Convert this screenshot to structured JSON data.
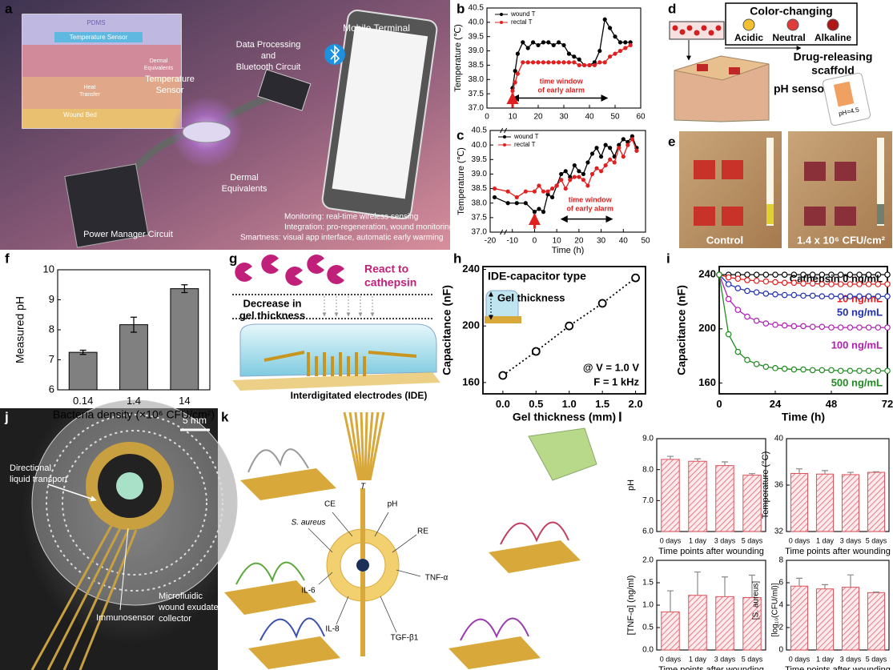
{
  "panel_letters": [
    "a",
    "b",
    "c",
    "d",
    "e",
    "f",
    "g",
    "h",
    "i",
    "j",
    "k",
    "l"
  ],
  "panels": {
    "a": {
      "inset": {
        "pdms": "PDMS",
        "sensor": "Temperature Sensor",
        "dermal": [
          "Dermal",
          "Equivalents"
        ],
        "heat": [
          "Heat",
          "Transfer"
        ],
        "bed": "Wound Bed"
      },
      "mobile": "Mobile Terminal",
      "circuit": [
        "Data Processing",
        "and",
        "Bluetooth Circuit"
      ],
      "sensor": [
        "Temperature",
        "Sensor"
      ],
      "dermal": [
        "Dermal",
        "Equivalents"
      ],
      "power": "Power Manager Circuit",
      "features": [
        "Monitoring: real-time wireless sensing",
        "Integration: pro-regeneration, wound monitoring",
        "Smartness: visual app interface, automatic early warming"
      ]
    },
    "d": {
      "color_title": "Color-changing",
      "colors": [
        "Acidic",
        "Neutral",
        "Alkaline"
      ],
      "scaffold": [
        "Drug-releasing",
        "scaffold"
      ],
      "ph_sensor": "pH sensor",
      "phone": "pH=4.5"
    },
    "e": {
      "control": "Control",
      "infected": "1.4 x 10⁶ CFU/cm²"
    },
    "g": {
      "react": [
        "React to",
        "cathepsin"
      ],
      "decrease": [
        "Decrease in",
        "gel thickness"
      ],
      "ide": "Interdigitated electrodes (IDE)"
    },
    "j": {
      "scale": "5 mm",
      "transport": [
        "Directional",
        "liquid transport"
      ],
      "immuno": "Immunosensor",
      "collector": [
        "Microfluidic",
        "wound exudate",
        "collector"
      ]
    },
    "k": {
      "t": "T",
      "ce": "CE",
      "ph": "pH",
      "re": "RE",
      "saureus": "S. aureus",
      "tnf": "TNF-α",
      "il6": "IL-6",
      "il8": "IL-8",
      "tgf": "TGF-β1"
    }
  },
  "chart_data": [
    {
      "type": "line",
      "ylabel": "Temperature (℃)",
      "x": [
        10,
        11,
        12,
        14,
        16,
        18,
        20,
        22,
        24,
        26,
        28,
        30,
        32,
        34,
        36,
        38,
        40,
        42,
        44,
        46,
        48,
        50,
        52,
        54,
        56
      ],
      "series": [
        {
          "name": "wound T",
          "color": "#000000",
          "values": [
            37.7,
            38.3,
            38.9,
            39.3,
            39.1,
            39.3,
            39.2,
            39.3,
            39.3,
            39.2,
            39.3,
            39.2,
            38.9,
            38.8,
            38.7,
            38.5,
            38.5,
            38.6,
            39.0,
            40.1,
            39.8,
            39.5,
            39.3,
            39.3,
            39.3
          ]
        },
        {
          "name": "rectal T",
          "color": "#e02020",
          "values": [
            37.6,
            37.9,
            38.2,
            38.6,
            38.6,
            38.6,
            38.6,
            38.6,
            38.6,
            38.6,
            38.6,
            38.6,
            38.6,
            38.6,
            38.5,
            38.5,
            38.5,
            38.5,
            38.6,
            38.6,
            38.8,
            38.9,
            39.0,
            39.1,
            39.2
          ]
        }
      ],
      "xlim": [
        0,
        60
      ],
      "xticks": [
        0,
        10,
        20,
        30,
        40,
        50,
        60
      ],
      "ylim": [
        37,
        40.5
      ],
      "yticks": [
        {
          "value": 37,
          "label": "37.0"
        },
        37.5,
        {
          "value": 38,
          "label": "38.0"
        },
        38.5,
        {
          "value": 39,
          "label": "39.0"
        },
        39.5,
        {
          "value": 40,
          "label": "40.0"
        },
        40.5
      ],
      "annotation": [
        "time window",
        "of early alarm"
      ]
    },
    {
      "type": "line",
      "ylabel": "Temperature (℃)",
      "xlabel": "Time (h)",
      "x": [
        -18,
        -12,
        -8,
        -4,
        0,
        2,
        4,
        6,
        8,
        10,
        12,
        14,
        16,
        18,
        20,
        22,
        24,
        26,
        28,
        30,
        32,
        34,
        36,
        38,
        40,
        42,
        44,
        46
      ],
      "series": [
        {
          "name": "wound T",
          "color": "#000000",
          "values": [
            38.2,
            38.0,
            38.0,
            38.0,
            37.7,
            37.8,
            37.7,
            38.3,
            38.2,
            38.6,
            39.0,
            39.1,
            38.9,
            39.3,
            39.1,
            39.0,
            39.4,
            39.7,
            39.9,
            39.6,
            40.0,
            39.9,
            39.6,
            40.0,
            40.2,
            40.1,
            40.3,
            39.9
          ]
        },
        {
          "name": "rectal T",
          "color": "#e02020",
          "values": [
            38.5,
            38.4,
            38.2,
            38.4,
            38.4,
            38.6,
            38.4,
            38.4,
            38.5,
            38.6,
            38.8,
            38.5,
            38.8,
            38.9,
            38.9,
            38.8,
            38.6,
            39.0,
            39.2,
            39.1,
            39.3,
            39.5,
            39.4,
            39.9,
            39.6,
            40.0,
            40.2,
            39.8
          ]
        }
      ],
      "xlim": [
        -20,
        50
      ],
      "xticks": [
        -20,
        -10,
        0,
        10,
        20,
        30,
        40,
        50
      ],
      "ylim": [
        37,
        40.5
      ],
      "yticks": [
        {
          "value": 37,
          "label": "37.0"
        },
        37.5,
        {
          "value": 38,
          "label": "38.0"
        },
        38.5,
        {
          "value": 39,
          "label": "39.0"
        },
        39.5,
        {
          "value": 40,
          "label": "40.0"
        },
        40.5
      ],
      "annotation": [
        "time window",
        "of early alarm"
      ]
    },
    {
      "type": "bar",
      "categories": [
        "0.14",
        "1.4",
        "14"
      ],
      "values": [
        7.25,
        8.17,
        9.37
      ],
      "errors": [
        0.07,
        0.25,
        0.13
      ],
      "color": "#808080",
      "xlabel": "Bacteria density (×10⁶ CFU/cm²)",
      "ylabel": "Measured pH",
      "ylim": [
        6,
        10
      ],
      "yticks": [
        6,
        7,
        8,
        9,
        10
      ]
    },
    {
      "type": "scatter",
      "title": "IDE-capacitor type",
      "x": [
        0,
        0.5,
        1,
        1.5,
        2
      ],
      "values": [
        165,
        182,
        200,
        216,
        234
      ],
      "xlim": [
        -0.3,
        2.15
      ],
      "xticks": [
        {
          "value": 0,
          "label": "0.0"
        },
        0.5,
        {
          "value": 1,
          "label": "1.0"
        },
        1.5,
        {
          "value": 2,
          "label": "2.0"
        }
      ],
      "ylim": [
        152,
        242
      ],
      "yticks": [
        160,
        200,
        240
      ],
      "xlabel": "Gel thickness (mm)",
      "ylabel": "Capacitance (nF)",
      "annotations": [
        "Gel thickness",
        "@ V = 1.0 V",
        "F = 1 kHz"
      ]
    },
    {
      "type": "line",
      "xlabel": "Time (h)",
      "ylabel": "Capacitance (nF)",
      "x": [
        0,
        4,
        8,
        12,
        16,
        20,
        24,
        28,
        32,
        36,
        40,
        44,
        48,
        52,
        56,
        60,
        64,
        68,
        72
      ],
      "series": [
        {
          "name": "Cathepsin 0 ng/mL",
          "color": "#000000",
          "values": [
            240,
            240,
            240,
            240,
            240,
            240,
            240,
            240,
            240,
            240,
            240,
            240,
            240,
            240,
            240,
            240,
            240,
            240,
            240
          ]
        },
        {
          "name": "10 ng/mL",
          "color": "#e0201f",
          "values": [
            240,
            238,
            237,
            236,
            235.5,
            235,
            234.5,
            234,
            234,
            233.5,
            233.5,
            233,
            233,
            233,
            233,
            233,
            233,
            233,
            233
          ]
        },
        {
          "name": "50 ng/mL",
          "color": "#1f2fb0",
          "values": [
            240,
            233,
            230,
            228,
            227,
            226,
            225.5,
            225,
            225,
            224.5,
            224.5,
            224,
            224,
            224,
            224,
            224,
            224,
            224,
            224
          ]
        },
        {
          "name": "100 ng/mL",
          "color": "#b01fb0",
          "values": [
            240,
            222,
            214,
            209,
            206,
            204,
            203,
            202.5,
            202,
            202,
            201.5,
            201.5,
            201,
            201,
            201,
            201,
            201,
            201,
            201
          ]
        },
        {
          "name": "500 ng/mL",
          "color": "#1f8a1f",
          "values": [
            240,
            196,
            183,
            177,
            174,
            172,
            171,
            170.5,
            170,
            170,
            169.5,
            169.5,
            169.5,
            169,
            169,
            169,
            169,
            169,
            169
          ]
        }
      ],
      "xlim": [
        0,
        72
      ],
      "xticks": [
        0,
        24,
        48,
        72
      ],
      "ylim": [
        152,
        246
      ],
      "yticks": [
        160,
        200,
        240
      ]
    },
    {
      "type": "bar",
      "hatch": true,
      "color": "#e0505a",
      "categories": [
        "0 days",
        "1 day",
        "3 days",
        "5 days"
      ],
      "values": [
        8.33,
        8.27,
        8.13,
        7.82
      ],
      "errors": [
        0.1,
        0.08,
        0.12,
        0.05
      ],
      "ylabel": "pH",
      "xlabel": "Time points after wounding",
      "ylim": [
        6,
        9
      ],
      "yticks": [
        {
          "value": 6,
          "label": "6.0"
        },
        {
          "value": 7,
          "label": "7.0"
        },
        {
          "value": 8,
          "label": "8.0"
        },
        {
          "value": 9,
          "label": "9.0"
        }
      ]
    },
    {
      "type": "bar",
      "hatch": true,
      "color": "#e0505a",
      "categories": [
        "0 days",
        "1 day",
        "3 days",
        "5 days"
      ],
      "values": [
        37.0,
        36.95,
        36.9,
        37.1
      ],
      "errors": [
        0.4,
        0.3,
        0.2,
        0.05
      ],
      "ylabel": "Temperature (°C)",
      "xlabel": "Time points after wounding",
      "ylim": [
        32,
        40
      ],
      "yticks": [
        32,
        36,
        40
      ]
    },
    {
      "type": "bar",
      "hatch": true,
      "color": "#e0505a",
      "categories": [
        "0 days",
        "1 day",
        "3 days",
        "5 days"
      ],
      "values": [
        0.85,
        1.22,
        1.19,
        1.17
      ],
      "errors": [
        0.47,
        0.52,
        0.44,
        0.5
      ],
      "ylabel": "[TNF-α] (ng/ml)",
      "xlabel": "Time points after wounding",
      "ylim": [
        0,
        2
      ],
      "yticks": [
        {
          "value": 0,
          "label": "0.0"
        },
        0.5,
        {
          "value": 1,
          "label": "1.0"
        },
        1.5,
        {
          "value": 2,
          "label": "2.0"
        }
      ]
    },
    {
      "type": "bar",
      "hatch": true,
      "color": "#e0505a",
      "categories": [
        "0 days",
        "1 day",
        "3 days",
        "5 days"
      ],
      "values": [
        5.7,
        5.45,
        5.6,
        5.12
      ],
      "errors": [
        0.7,
        0.38,
        1.1,
        0.05
      ],
      "ylabel": [
        "[S. aureus]",
        "[log₁₀(CFU/ml)]"
      ],
      "xlabel": "Time points after wounding",
      "ylim": [
        0,
        8
      ],
      "yticks": [
        0,
        2,
        4,
        6,
        8
      ]
    }
  ]
}
